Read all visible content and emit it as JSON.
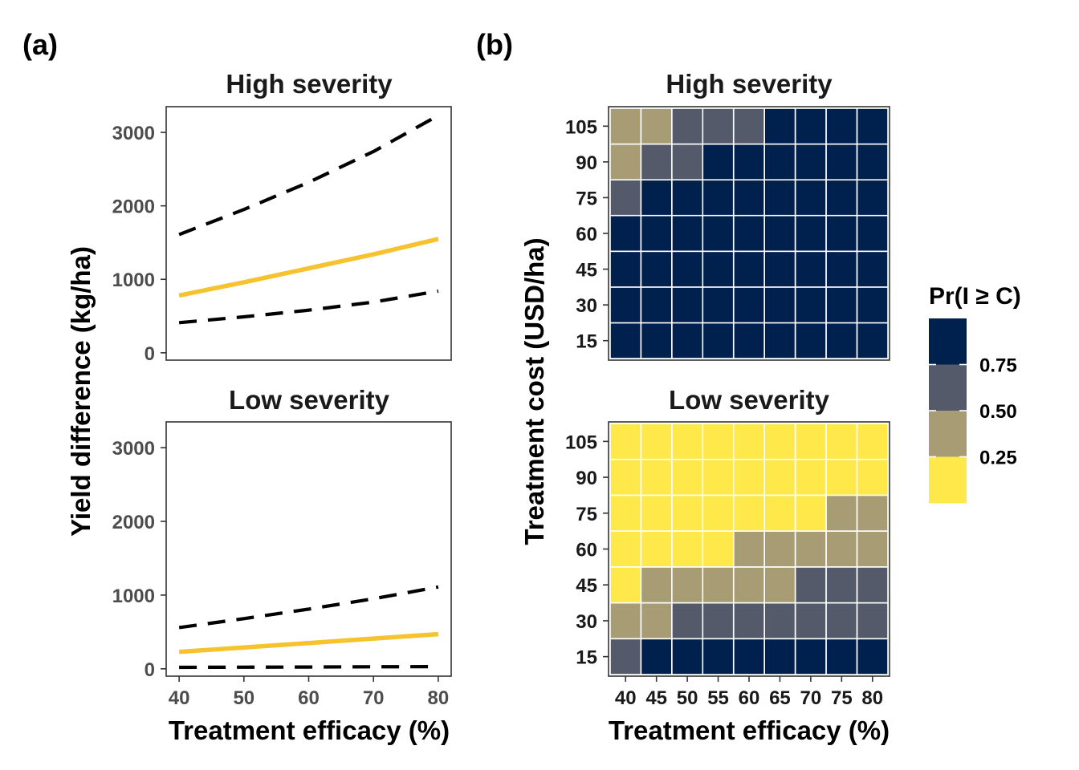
{
  "panels": {
    "a": "(a)",
    "b": "(b)"
  },
  "colors": {
    "mean_line": "#F6C22E",
    "ci_line": "#000000",
    "tiles": [
      "#FFE84A",
      "#A89C74",
      "#555A6B",
      "#00204D"
    ]
  },
  "chart_data": [
    {
      "type": "line",
      "panel": "(a)",
      "title": "High severity",
      "xlabel": "Treatment efficacy (%)",
      "ylabel": "Yield difference (kg/ha)",
      "xlim": [
        38,
        82
      ],
      "ylim": [
        -100,
        3350
      ],
      "xticks": [
        "40",
        "50",
        "60",
        "70",
        "80"
      ],
      "yticks": [
        "0",
        "1000",
        "2000",
        "3000"
      ],
      "x_axis_shown": false,
      "grid": false,
      "series": [
        {
          "style": "solid",
          "color": "#F6C22E",
          "x": [
            40,
            50,
            60,
            70,
            80
          ],
          "y": [
            780,
            960,
            1150,
            1340,
            1550
          ]
        },
        {
          "style": "dashed",
          "color": "#000000",
          "x": [
            40,
            50,
            60,
            70,
            80
          ],
          "y": [
            1610,
            1950,
            2320,
            2740,
            3230
          ]
        },
        {
          "style": "dashed",
          "color": "#000000",
          "x": [
            40,
            50,
            60,
            70,
            80
          ],
          "y": [
            410,
            490,
            580,
            690,
            840
          ]
        }
      ]
    },
    {
      "type": "line",
      "panel": "(a)",
      "title": "Low severity",
      "xlabel": "Treatment efficacy (%)",
      "ylabel": "Yield difference (kg/ha)",
      "xlim": [
        38,
        82
      ],
      "ylim": [
        -100,
        3350
      ],
      "xticks": [
        "40",
        "50",
        "60",
        "70",
        "80"
      ],
      "yticks": [
        "0",
        "1000",
        "2000",
        "3000"
      ],
      "x_axis_shown": true,
      "grid": false,
      "series": [
        {
          "style": "solid",
          "color": "#F6C22E",
          "x": [
            40,
            50,
            60,
            70,
            80
          ],
          "y": [
            230,
            290,
            350,
            410,
            470
          ]
        },
        {
          "style": "dashed",
          "color": "#000000",
          "x": [
            40,
            50,
            60,
            70,
            80
          ],
          "y": [
            560,
            680,
            810,
            950,
            1110
          ]
        },
        {
          "style": "dashed",
          "color": "#000000",
          "x": [
            40,
            50,
            60,
            70,
            80
          ],
          "y": [
            20,
            22,
            24,
            27,
            30
          ]
        }
      ]
    },
    {
      "type": "heatmap",
      "panel": "(b)",
      "title": "High severity",
      "xlabel": "Treatment efficacy (%)",
      "ylabel": "Treatment cost (USD/ha)",
      "x": [
        "40",
        "45",
        "50",
        "55",
        "60",
        "65",
        "70",
        "75",
        "80"
      ],
      "y": [
        "15",
        "30",
        "45",
        "60",
        "75",
        "90",
        "105"
      ],
      "x_axis_shown": false,
      "z_bins_note": "0 = below 0.25 label band (yellow), 1 = 0.25-0.50 band, 2 = 0.50-0.75 band, 3 = above 0.75",
      "values": [
        [
          3,
          3,
          3,
          3,
          3,
          3,
          3,
          3,
          3
        ],
        [
          3,
          3,
          3,
          3,
          3,
          3,
          3,
          3,
          3
        ],
        [
          3,
          3,
          3,
          3,
          3,
          3,
          3,
          3,
          3
        ],
        [
          3,
          3,
          3,
          3,
          3,
          3,
          3,
          3,
          3
        ],
        [
          2,
          3,
          3,
          3,
          3,
          3,
          3,
          3,
          3
        ],
        [
          1,
          2,
          2,
          3,
          3,
          3,
          3,
          3,
          3
        ],
        [
          1,
          1,
          2,
          2,
          2,
          3,
          3,
          3,
          3
        ]
      ]
    },
    {
      "type": "heatmap",
      "panel": "(b)",
      "title": "Low severity",
      "xlabel": "Treatment efficacy (%)",
      "ylabel": "Treatment cost (USD/ha)",
      "x": [
        "40",
        "45",
        "50",
        "55",
        "60",
        "65",
        "70",
        "75",
        "80"
      ],
      "y": [
        "15",
        "30",
        "45",
        "60",
        "75",
        "90",
        "105"
      ],
      "x_axis_shown": true,
      "values": [
        [
          2,
          3,
          3,
          3,
          3,
          3,
          3,
          3,
          3
        ],
        [
          1,
          1,
          2,
          2,
          2,
          2,
          2,
          2,
          2
        ],
        [
          0,
          1,
          1,
          1,
          1,
          1,
          2,
          2,
          2
        ],
        [
          0,
          0,
          0,
          0,
          1,
          1,
          1,
          1,
          1
        ],
        [
          0,
          0,
          0,
          0,
          0,
          0,
          0,
          1,
          1
        ],
        [
          0,
          0,
          0,
          0,
          0,
          0,
          0,
          0,
          0
        ],
        [
          0,
          0,
          0,
          0,
          0,
          0,
          0,
          0,
          0
        ]
      ]
    }
  ],
  "legend": {
    "title": "Pr(I ≥ C)",
    "labels": [
      "0.75",
      "0.50",
      "0.25"
    ],
    "placement": "right"
  }
}
